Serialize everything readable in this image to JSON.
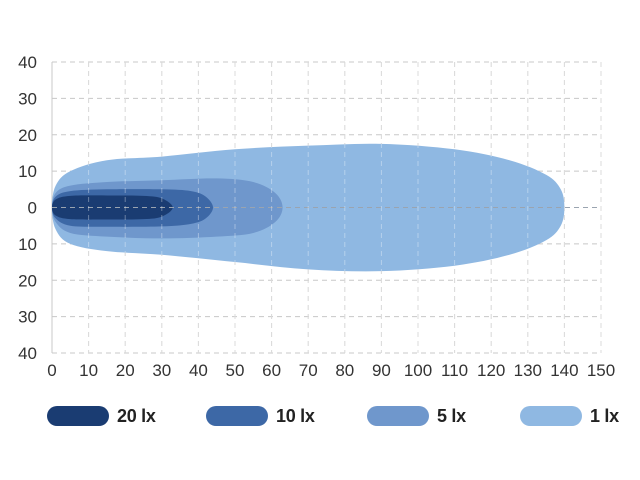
{
  "chart_data": {
    "type": "area",
    "title": "",
    "xlabel": "",
    "ylabel": "",
    "xlim": [
      0,
      150
    ],
    "ylim": [
      -40,
      40
    ],
    "x_ticks": [
      "0",
      "10",
      "20",
      "30",
      "40",
      "50",
      "60",
      "70",
      "80",
      "90",
      "100",
      "110",
      "120",
      "130",
      "140",
      "150"
    ],
    "y_ticks": [
      "40",
      "30",
      "20",
      "10",
      "0",
      "10",
      "20",
      "30",
      "40"
    ],
    "grid": true,
    "legend_position": "bottom",
    "series": [
      {
        "name": "1 lx",
        "color": "#8fb8e2",
        "outline": [
          [
            0,
            0
          ],
          [
            1,
            -6
          ],
          [
            5,
            -10
          ],
          [
            15,
            -12
          ],
          [
            30,
            -13
          ],
          [
            50,
            -15
          ],
          [
            70,
            -17
          ],
          [
            90,
            -17.5
          ],
          [
            110,
            -16
          ],
          [
            125,
            -13
          ],
          [
            135,
            -9
          ],
          [
            139,
            -5
          ],
          [
            140,
            0
          ],
          [
            139,
            5
          ],
          [
            135,
            9
          ],
          [
            125,
            13
          ],
          [
            110,
            16
          ],
          [
            90,
            17.5
          ],
          [
            70,
            17
          ],
          [
            50,
            16
          ],
          [
            30,
            14
          ],
          [
            15,
            13
          ],
          [
            5,
            10
          ],
          [
            1,
            6
          ]
        ]
      },
      {
        "name": "5 lx",
        "color": "#6f97cc",
        "outline": [
          [
            0,
            0
          ],
          [
            1,
            -4
          ],
          [
            5,
            -7
          ],
          [
            15,
            -8
          ],
          [
            30,
            -8.5
          ],
          [
            45,
            -8
          ],
          [
            55,
            -7
          ],
          [
            61,
            -4
          ],
          [
            63,
            0
          ],
          [
            61,
            4
          ],
          [
            55,
            7
          ],
          [
            45,
            8
          ],
          [
            30,
            7.5
          ],
          [
            15,
            7
          ],
          [
            5,
            6
          ],
          [
            1,
            4
          ]
        ]
      },
      {
        "name": "10 lx",
        "color": "#3d68a6",
        "outline": [
          [
            0,
            0
          ],
          [
            1,
            -3
          ],
          [
            5,
            -5
          ],
          [
            15,
            -5.3
          ],
          [
            30,
            -5.2
          ],
          [
            38,
            -4.5
          ],
          [
            42,
            -3
          ],
          [
            44,
            0
          ],
          [
            42,
            3
          ],
          [
            38,
            4.5
          ],
          [
            30,
            5
          ],
          [
            15,
            5
          ],
          [
            5,
            4.5
          ],
          [
            1,
            3
          ]
        ]
      },
      {
        "name": "20 lx",
        "color": "#1a3c72",
        "outline": [
          [
            0,
            0
          ],
          [
            1,
            -2.2
          ],
          [
            5,
            -3.2
          ],
          [
            15,
            -3.3
          ],
          [
            25,
            -3.2
          ],
          [
            30,
            -2.5
          ],
          [
            33,
            0
          ],
          [
            30,
            2.5
          ],
          [
            25,
            3.2
          ],
          [
            15,
            3.3
          ],
          [
            5,
            3.2
          ],
          [
            1,
            2.2
          ]
        ]
      }
    ]
  },
  "legend": [
    {
      "label": "20 lx",
      "color": "#1a3c72"
    },
    {
      "label": "10 lx",
      "color": "#3d68a6"
    },
    {
      "label": "5 lx",
      "color": "#6f97cc"
    },
    {
      "label": "1 lx",
      "color": "#8fb8e2"
    }
  ]
}
